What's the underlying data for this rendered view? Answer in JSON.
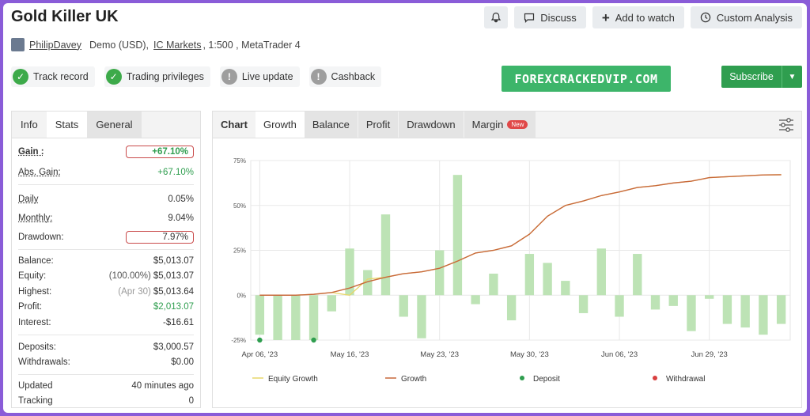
{
  "header": {
    "title": "Gold Killer UK",
    "buttons": {
      "discuss": "Discuss",
      "watch": "Add to watch",
      "analysis": "Custom Analysis"
    }
  },
  "meta": {
    "user": "PhilipDavey",
    "account": "Demo (USD),",
    "broker": "IC Markets",
    "leverage": ", 1:500 , MetaTrader 4"
  },
  "badges": [
    {
      "label": "Track record",
      "state": "ok"
    },
    {
      "label": "Trading privileges",
      "state": "ok"
    },
    {
      "label": "Live update",
      "state": "na"
    },
    {
      "label": "Cashback",
      "state": "na"
    }
  ],
  "promo": "FOREXCRACKEDVIP.COM",
  "subscribe": "Subscribe",
  "stats_tabs": [
    "Info",
    "Stats",
    "General"
  ],
  "stats": {
    "gain": {
      "k": "Gain :",
      "v": "+67.10%"
    },
    "abs_gain": {
      "k": "Abs. Gain:",
      "v": "+67.10%"
    },
    "daily": {
      "k": "Daily",
      "v": "0.05%"
    },
    "monthly": {
      "k": "Monthly:",
      "v": "9.04%"
    },
    "drawdown": {
      "k": "Drawdown:",
      "v": "7.97%"
    },
    "balance": {
      "k": "Balance:",
      "v": "$5,013.07"
    },
    "equity": {
      "k": "Equity:",
      "pre": "(100.00%)",
      "v": "$5,013.07"
    },
    "highest": {
      "k": "Highest:",
      "pre": "(Apr 30)",
      "v": "$5,013.64"
    },
    "profit": {
      "k": "Profit:",
      "v": "$2,013.07"
    },
    "interest": {
      "k": "Interest:",
      "v": "-$16.61"
    },
    "deposits": {
      "k": "Deposits:",
      "v": "$3,000.57"
    },
    "withdrawals": {
      "k": "Withdrawals:",
      "v": "$0.00"
    },
    "updated": {
      "k": "Updated",
      "v": "40 minutes ago"
    },
    "tracking": {
      "k": "Tracking",
      "v": "0"
    }
  },
  "chart_tabs": {
    "chart": "Chart",
    "growth": "Growth",
    "balance": "Balance",
    "profit": "Profit",
    "drawdown": "Drawdown",
    "margin": "Margin",
    "new_badge": "New"
  },
  "chart_data": {
    "type": "bar",
    "ylim": [
      -25,
      75
    ],
    "yticks": [
      "75%",
      "50%",
      "25%",
      "0%",
      "-25%"
    ],
    "yticks_values": [
      75,
      50,
      25,
      0,
      -25
    ],
    "xtick_labels": [
      "Apr 06, '23",
      "May 16, '23",
      "May 23, '23",
      "May 30, '23",
      "Jun 06, '23",
      "Jun 29, '23"
    ],
    "xtick_positions": [
      0,
      5,
      10,
      15,
      20,
      25
    ],
    "grid": true,
    "legend_position": "bottom",
    "legend": {
      "equity": "Equity Growth",
      "growth": "Growth",
      "deposit": "Deposit",
      "withdrawal": "Withdrawal"
    },
    "colors": {
      "bar": "#bde3b5",
      "growth": "#c8683a",
      "equity": "#e7d76a",
      "deposit": "#2f9e4f",
      "withdrawal": "#d94040"
    },
    "bars": [
      -22,
      -25,
      -25,
      -25,
      -9,
      26,
      14,
      45,
      -12,
      -24,
      25,
      67,
      -5,
      12,
      -14,
      23,
      18,
      8,
      -10,
      26,
      -12,
      23,
      -8,
      -6,
      -20,
      -2,
      -16,
      -18,
      -22,
      -16
    ],
    "growth": [
      0,
      0,
      0,
      0.5,
      1.5,
      4,
      7.5,
      10,
      12,
      13,
      15,
      19,
      23.5,
      25,
      27.5,
      34,
      44,
      50,
      52.5,
      55.5,
      57.5,
      60,
      61,
      62.5,
      63.5,
      65.5,
      66,
      66.5,
      67,
      67.1
    ],
    "equity": [
      0,
      0,
      0,
      0.5,
      1.5,
      0,
      9,
      10,
      12,
      13,
      15,
      19,
      23.5,
      25,
      27.5,
      34,
      44,
      50,
      52.5,
      55.5,
      57.5,
      60,
      61,
      62.5,
      63.5,
      65.5,
      66,
      66.5,
      67,
      67.1
    ],
    "deposits_at": [
      0,
      3
    ],
    "deposit_value": -25
  }
}
